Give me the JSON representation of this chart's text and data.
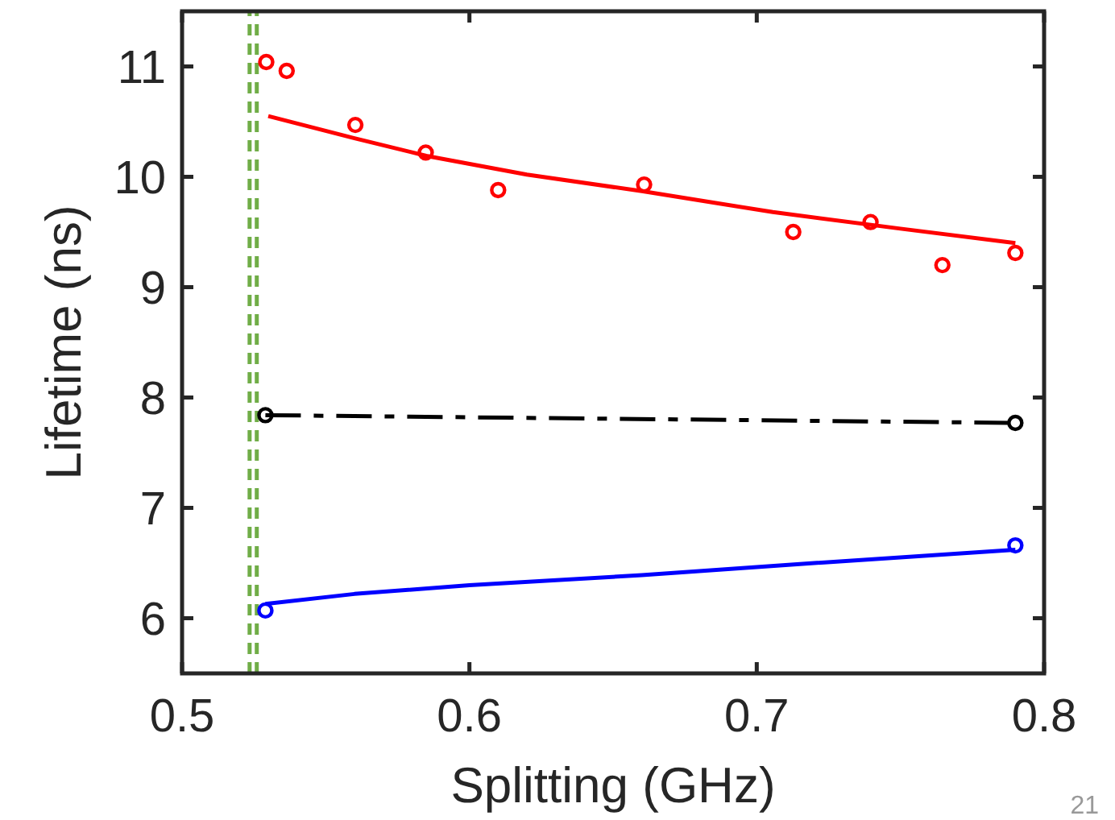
{
  "chart_data": {
    "type": "scatter",
    "xlabel": "Splitting (GHz)",
    "ylabel": "Lifetime (ns)",
    "xlim": [
      0.5,
      0.8
    ],
    "xticks": [
      0.5,
      0.6,
      0.7,
      0.8
    ],
    "ylim": [
      5.5,
      11.5
    ],
    "yticks": [
      6,
      7,
      8,
      9,
      10,
      11
    ],
    "grid": false,
    "series": [
      {
        "color": "#ff0000",
        "marker": "circle",
        "x": [
          0.5293,
          0.5364,
          0.5603,
          0.5848,
          0.61,
          0.6608,
          0.7127,
          0.7396,
          0.7646,
          0.79
        ],
        "values": [
          11.04,
          10.96,
          10.47,
          10.22,
          9.88,
          9.93,
          9.5,
          9.59,
          9.2,
          9.31
        ]
      },
      {
        "type": "line",
        "color": "#ff0000",
        "marker": "none",
        "line_style": "solid",
        "x": [
          0.53,
          0.56,
          0.585,
          0.62,
          0.66,
          0.7056,
          0.75,
          0.79
        ],
        "values": [
          10.55,
          10.35,
          10.19,
          10.02,
          9.87,
          9.68,
          9.53,
          9.4
        ]
      },
      {
        "type": "line",
        "color": "#000000",
        "marker": "circle",
        "line_style": "dashed",
        "x": [
          0.529,
          0.79
        ],
        "values": [
          7.84,
          7.77
        ]
      },
      {
        "color": "#0000ff",
        "marker": "circle",
        "x": [
          0.529,
          0.79
        ],
        "values": [
          6.07,
          6.66
        ]
      },
      {
        "type": "line",
        "color": "#0000ff",
        "marker": "none",
        "line_style": "solid",
        "x": [
          0.529,
          0.56,
          0.6,
          0.66,
          0.72,
          0.79
        ],
        "values": [
          6.13,
          6.22,
          6.3,
          6.39,
          6.5,
          6.62
        ]
      }
    ],
    "ref_lines": [
      {
        "axis": "x",
        "value": 0.5235,
        "color": "#70ad47",
        "line_style": "dashed"
      },
      {
        "axis": "x",
        "value": 0.526,
        "color": "#70ad47",
        "line_style": "dashed"
      }
    ],
    "annotations": [
      "21"
    ]
  }
}
